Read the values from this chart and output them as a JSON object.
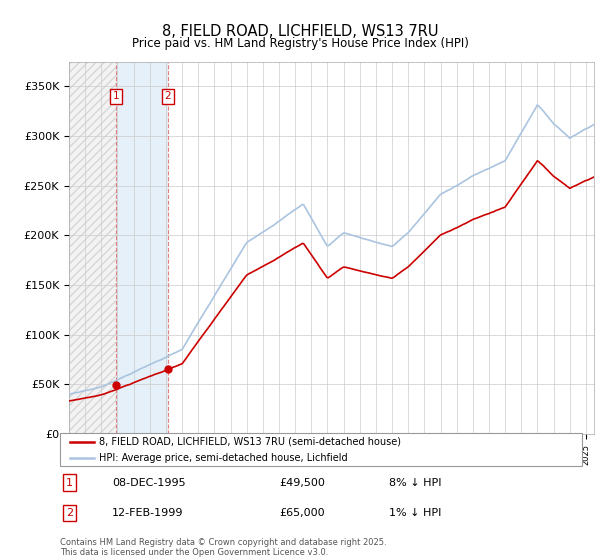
{
  "title_line1": "8, FIELD ROAD, LICHFIELD, WS13 7RU",
  "title_line2": "Price paid vs. HM Land Registry's House Price Index (HPI)",
  "ylim": [
    0,
    375000
  ],
  "yticks": [
    0,
    50000,
    100000,
    150000,
    200000,
    250000,
    300000,
    350000
  ],
  "ytick_labels": [
    "£0",
    "£50K",
    "£100K",
    "£150K",
    "£200K",
    "£250K",
    "£300K",
    "£350K"
  ],
  "background_color": "#ffffff",
  "hpi_color": "#aac4e0",
  "price_color": "#cc0000",
  "sale1_year": 1995.92,
  "sale1_price": 49500,
  "sale2_year": 1999.12,
  "sale2_price": 65000,
  "legend_line1": "8, FIELD ROAD, LICHFIELD, WS13 7RU (semi-detached house)",
  "legend_line2": "HPI: Average price, semi-detached house, Lichfield",
  "footnote": "Contains HM Land Registry data © Crown copyright and database right 2025.\nThis data is licensed under the Open Government Licence v3.0.",
  "table_row1": [
    "1",
    "08-DEC-1995",
    "£49,500",
    "8% ↓ HPI"
  ],
  "table_row2": [
    "2",
    "12-FEB-1999",
    "£65,000",
    "1% ↓ HPI"
  ]
}
